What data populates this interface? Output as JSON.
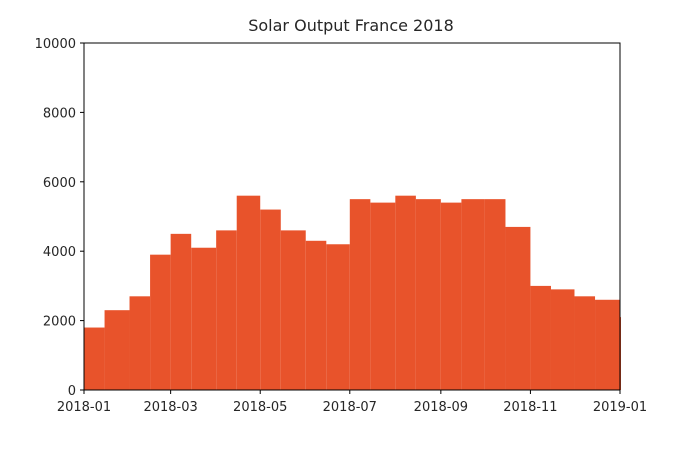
{
  "chart_data": {
    "type": "area",
    "title": "Solar Output France 2018",
    "xlabel": "",
    "ylabel": "",
    "xlim": [
      "2018-01-01",
      "2019-01-01"
    ],
    "ylim": [
      0,
      10000
    ],
    "y_ticks": [
      0,
      2000,
      4000,
      6000,
      8000,
      10000
    ],
    "x_ticks": [
      "2018-01",
      "2018-03",
      "2018-05",
      "2018-07",
      "2018-09",
      "2018-11",
      "2019-01"
    ],
    "grid": false,
    "legend": "none",
    "color": "#e8532b",
    "series": [
      {
        "name": "",
        "x": [
          "2018-01-01",
          "2018-01-15",
          "2018-02-01",
          "2018-02-15",
          "2018-03-01",
          "2018-03-15",
          "2018-04-01",
          "2018-04-15",
          "2018-05-01",
          "2018-05-15",
          "2018-06-01",
          "2018-06-15",
          "2018-07-01",
          "2018-07-15",
          "2018-08-01",
          "2018-08-15",
          "2018-09-01",
          "2018-09-15",
          "2018-10-01",
          "2018-10-15",
          "2018-11-01",
          "2018-11-15",
          "2018-12-01",
          "2018-12-15",
          "2019-01-01"
        ],
        "values": [
          1800,
          2300,
          2700,
          3900,
          4500,
          4100,
          4600,
          5600,
          5200,
          4600,
          4300,
          4200,
          5500,
          5400,
          5600,
          5500,
          5400,
          5500,
          5500,
          4700,
          3000,
          2900,
          2700,
          2600,
          2100
        ]
      }
    ]
  }
}
